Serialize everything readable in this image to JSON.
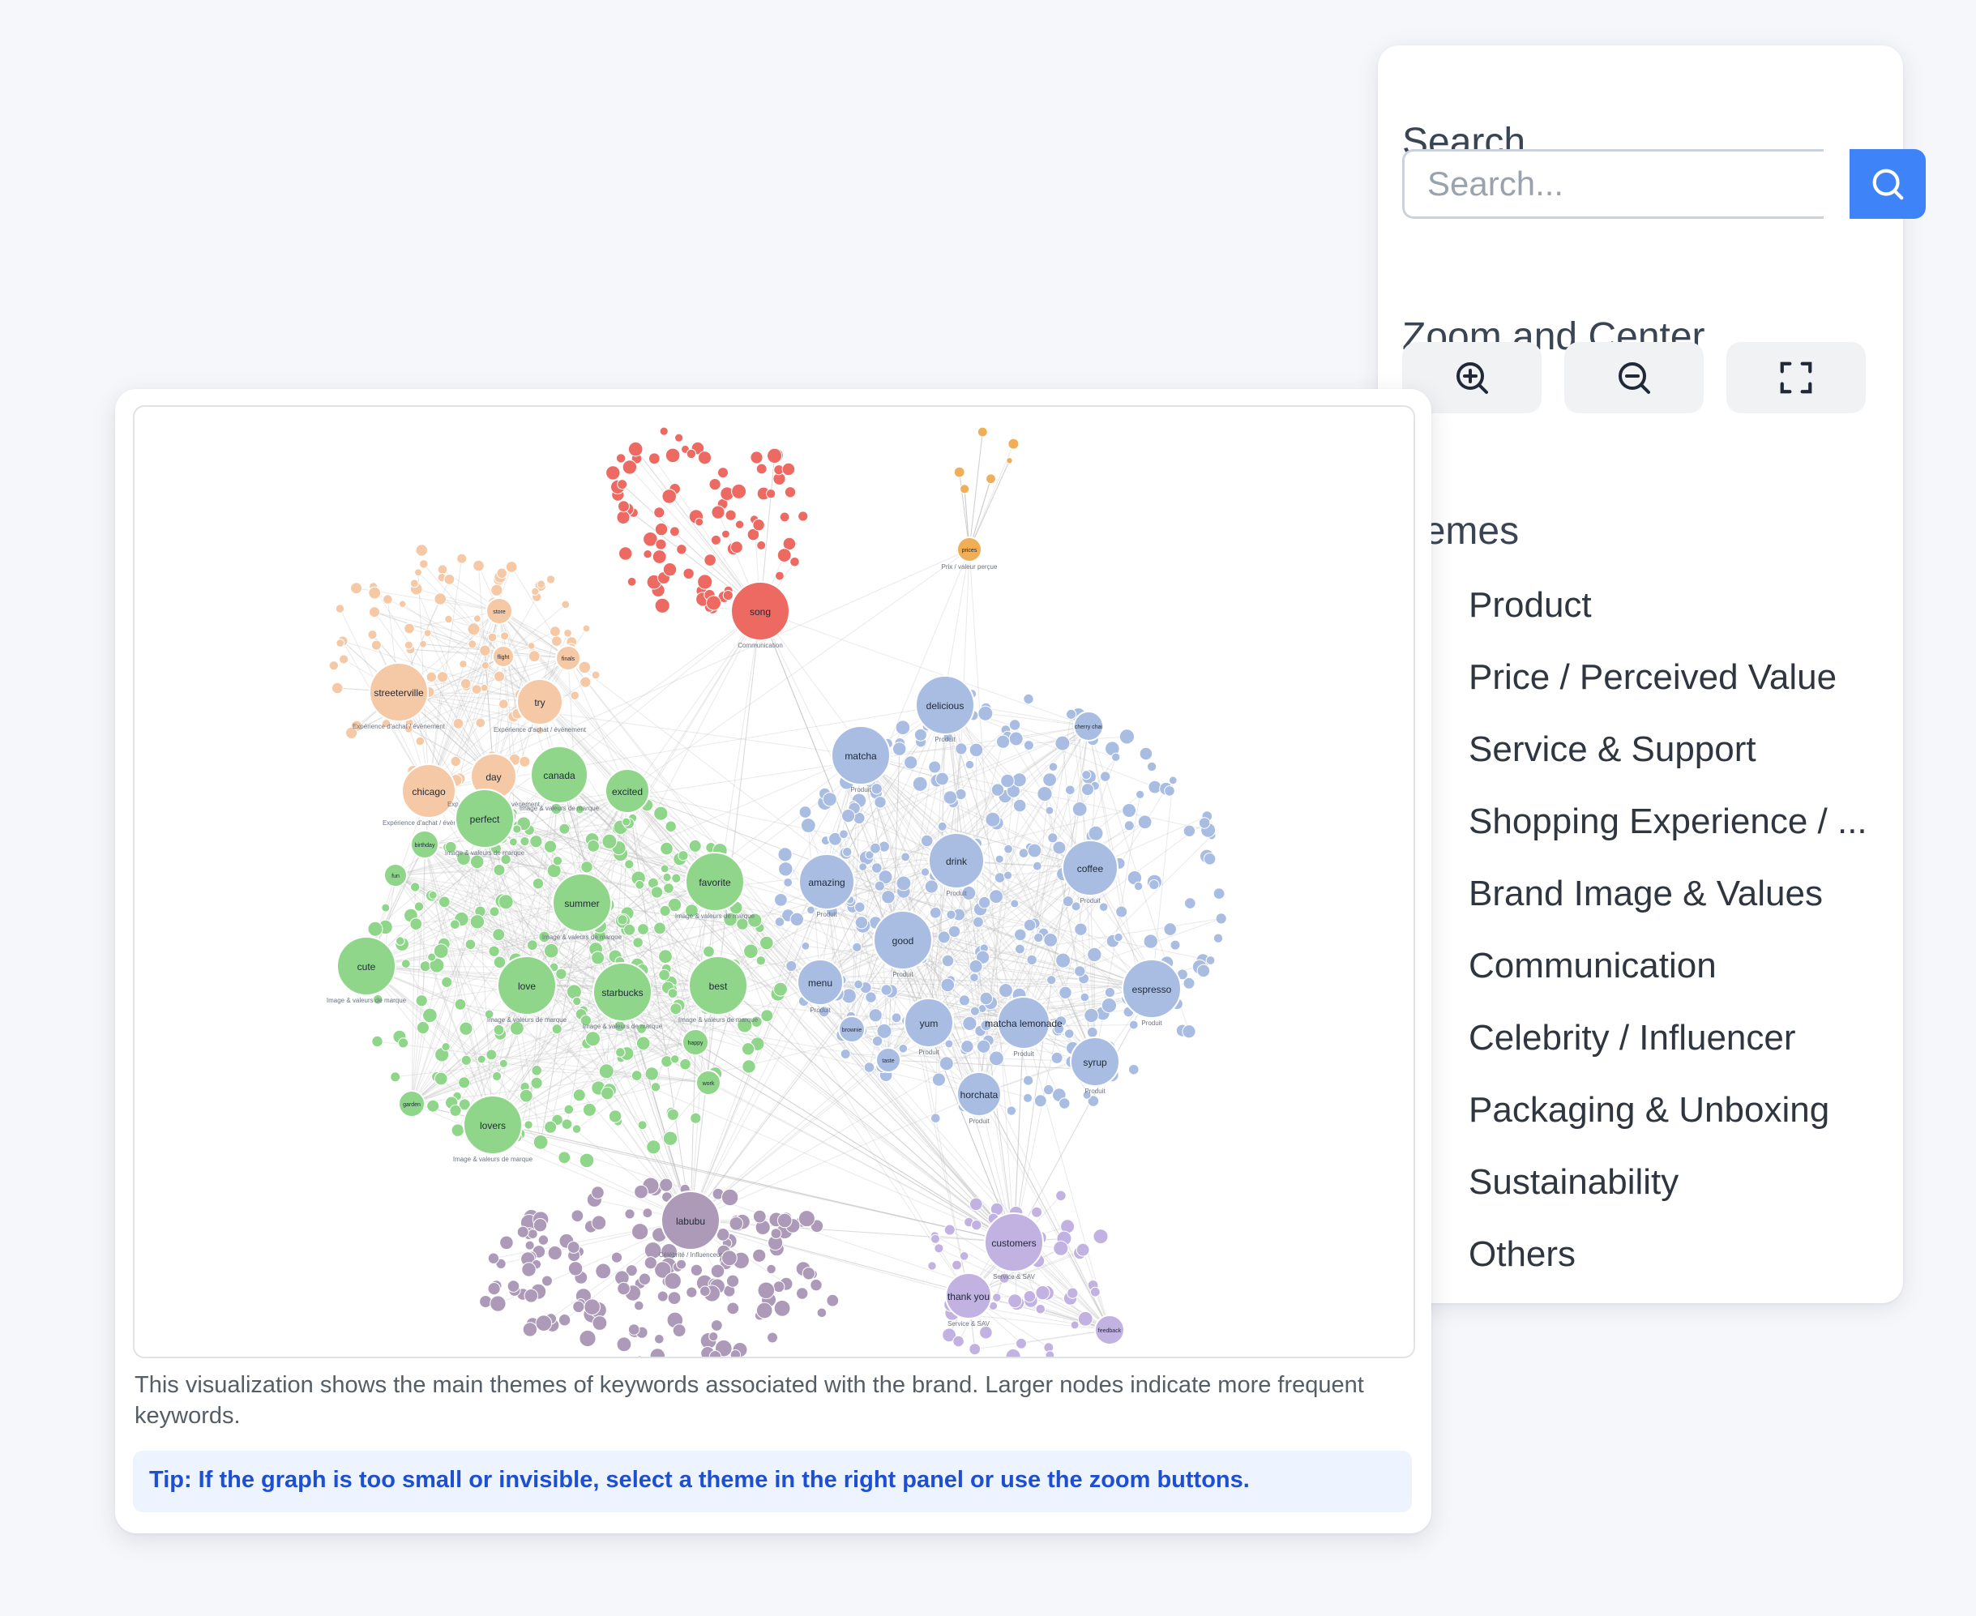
{
  "search": {
    "title": "Search",
    "placeholder": "Search...",
    "button_icon": "search-icon"
  },
  "zoom": {
    "title": "Zoom and Center",
    "buttons": [
      {
        "icon": "zoom-in-icon"
      },
      {
        "icon": "zoom-out-icon"
      },
      {
        "icon": "fit-screen-icon"
      }
    ]
  },
  "themes": {
    "title": "hemes",
    "items": [
      {
        "label": "Product",
        "color": "#a9bde3"
      },
      {
        "label": "Price / Perceived Value",
        "color": "#f0ae56"
      },
      {
        "label": "Service & Support",
        "color": "#c2b2e2"
      },
      {
        "label": "Shopping Experience / ...",
        "color": "#f6c9a6"
      },
      {
        "label": "Brand Image & Values",
        "color": "#8fd68a"
      },
      {
        "label": "Communication",
        "color": "#ec6a62"
      },
      {
        "label": "Celebrity / Influencer",
        "color": "#ad9ab8"
      },
      {
        "label": "Packaging & Unboxing",
        "color": "#f3d24a"
      },
      {
        "label": "Sustainability",
        "color": "#4cbf5a"
      },
      {
        "label": "Others",
        "color": "#a9a9ad"
      }
    ]
  },
  "graph": {
    "clusters": [
      {
        "name": "communication",
        "color": "#ec6a62",
        "nodes": [
          {
            "label": "song",
            "sub": "Communication"
          }
        ]
      },
      {
        "name": "price",
        "color": "#f0ae56",
        "nodes": [
          {
            "label": "prices",
            "sub": "Prix / valeur perçue"
          }
        ]
      },
      {
        "name": "shopping",
        "color": "#f6c9a6",
        "nodes": [
          {
            "label": "streeterville",
            "sub": "Expérience d'achat / évènement"
          },
          {
            "label": "try",
            "sub": "Expérience d'achat / évènement"
          },
          {
            "label": "chicago",
            "sub": "Expérience d'achat / évènement"
          },
          {
            "label": "day",
            "sub": "Expérience d'achat / évènement"
          },
          {
            "label": "store",
            "sub": ""
          },
          {
            "label": "flight",
            "sub": ""
          },
          {
            "label": "finals",
            "sub": ""
          }
        ]
      },
      {
        "name": "brand",
        "color": "#8fd68a",
        "nodes": [
          {
            "label": "canada",
            "sub": "Image & valeurs de marque"
          },
          {
            "label": "excited",
            "sub": ""
          },
          {
            "label": "perfect",
            "sub": "Image & valeurs de marque"
          },
          {
            "label": "summer",
            "sub": "Image & valeurs de marque"
          },
          {
            "label": "favorite",
            "sub": "Image & valeurs de marque"
          },
          {
            "label": "cute",
            "sub": "Image & valeurs de marque"
          },
          {
            "label": "love",
            "sub": "Image & valeurs de marque"
          },
          {
            "label": "starbucks",
            "sub": "Image & valeurs de marque"
          },
          {
            "label": "best",
            "sub": "Image & valeurs de marque"
          },
          {
            "label": "lovers",
            "sub": "Image & valeurs de marque"
          },
          {
            "label": "birthday",
            "sub": ""
          },
          {
            "label": "fun",
            "sub": ""
          },
          {
            "label": "happy",
            "sub": ""
          },
          {
            "label": "work",
            "sub": ""
          },
          {
            "label": "garden",
            "sub": ""
          }
        ]
      },
      {
        "name": "product",
        "color": "#a9bde3",
        "nodes": [
          {
            "label": "delicious",
            "sub": "Produit"
          },
          {
            "label": "matcha",
            "sub": "Produit"
          },
          {
            "label": "drink",
            "sub": "Produit"
          },
          {
            "label": "coffee",
            "sub": "Produit"
          },
          {
            "label": "amazing",
            "sub": "Produit"
          },
          {
            "label": "good",
            "sub": "Produit"
          },
          {
            "label": "menu",
            "sub": "Produit"
          },
          {
            "label": "espresso",
            "sub": "Produit"
          },
          {
            "label": "yum",
            "sub": "Produit"
          },
          {
            "label": "matcha lemonade",
            "sub": "Produit"
          },
          {
            "label": "syrup",
            "sub": "Produit"
          },
          {
            "label": "horchata",
            "sub": "Produit"
          },
          {
            "label": "cherry chai",
            "sub": ""
          },
          {
            "label": "taste",
            "sub": ""
          },
          {
            "label": "brownie",
            "sub": ""
          }
        ]
      },
      {
        "name": "celebrity",
        "color": "#ad9ab8",
        "nodes": [
          {
            "label": "labubu",
            "sub": "Célébrité / Influenceur"
          }
        ]
      },
      {
        "name": "service",
        "color": "#c2b2e2",
        "nodes": [
          {
            "label": "customers",
            "sub": "Service & SAV"
          },
          {
            "label": "thank you",
            "sub": "Service & SAV"
          },
          {
            "label": "feedback",
            "sub": ""
          }
        ]
      }
    ]
  },
  "description": "This visualization shows the main themes of keywords associated with the brand. Larger nodes indicate more frequent keywords.",
  "tip": "Tip: If the graph is too small or invisible, select a theme in the right panel or use the zoom buttons."
}
